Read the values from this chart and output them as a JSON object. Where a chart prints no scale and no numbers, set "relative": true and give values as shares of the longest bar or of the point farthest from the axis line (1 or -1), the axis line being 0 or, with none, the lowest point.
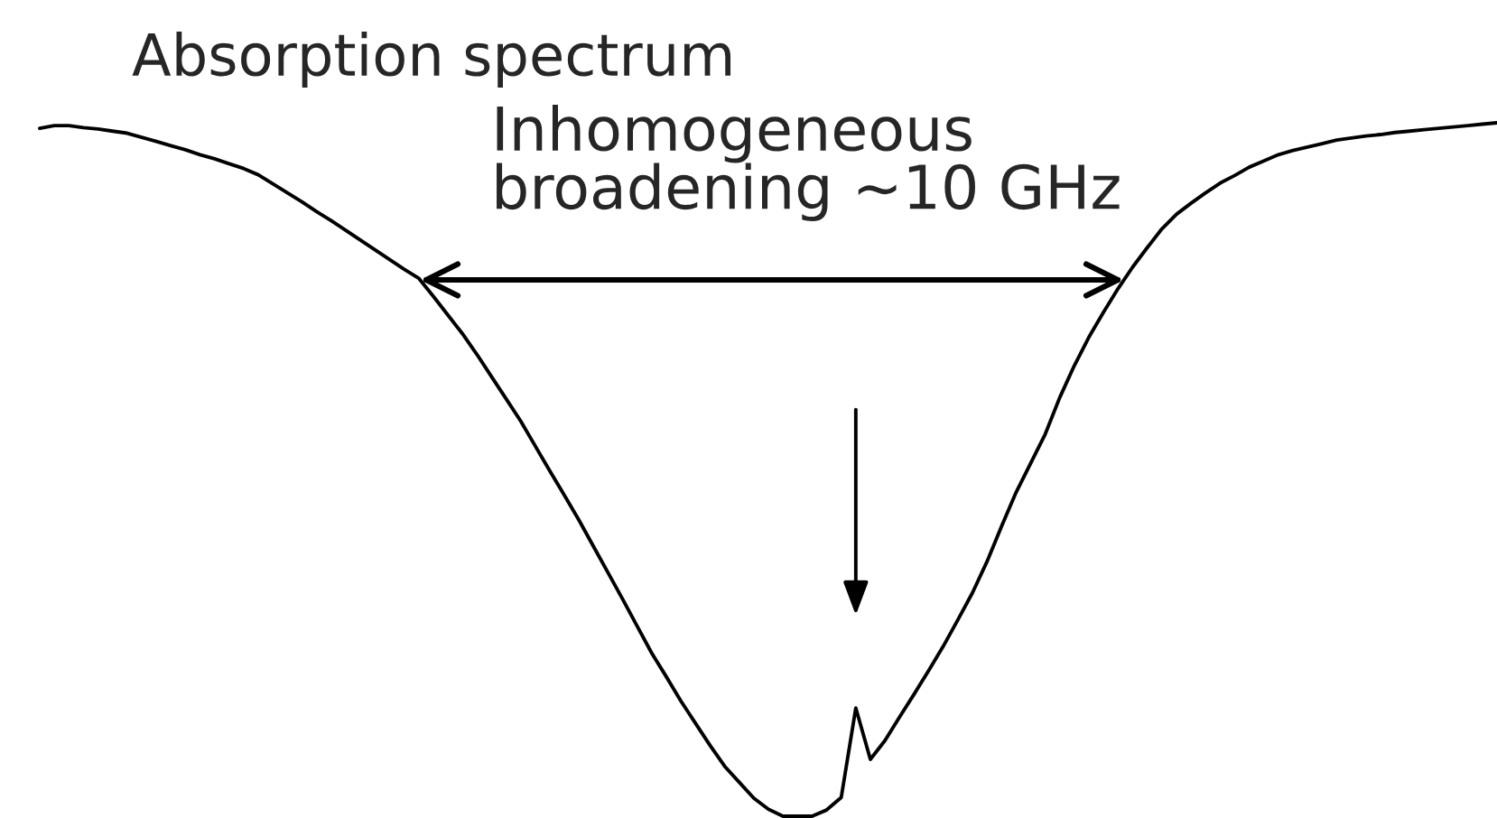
{
  "chart_data": {
    "type": "line",
    "title": "Absorption spectrum",
    "relative": true,
    "line_style": "solid",
    "categories": [
      null,
      null,
      null,
      null,
      null,
      null,
      null,
      null,
      null,
      null,
      null,
      null,
      null,
      null,
      null,
      null,
      null,
      null,
      null,
      null,
      null,
      null,
      null,
      null,
      null,
      null,
      null,
      null,
      null,
      null,
      null,
      null,
      null,
      null,
      null,
      null,
      null,
      null,
      null,
      null,
      null,
      null,
      null,
      null,
      null,
      null,
      null,
      null,
      null,
      null,
      null,
      null,
      null,
      null,
      null,
      null,
      null,
      null,
      null,
      null,
      null,
      null,
      null,
      null,
      null,
      null,
      null,
      null,
      null,
      null,
      null,
      null,
      null,
      null,
      null,
      null,
      null,
      null,
      null,
      null,
      null,
      null,
      null,
      null,
      null,
      null,
      null,
      null,
      null,
      null,
      null,
      null,
      null,
      null,
      null,
      null,
      null,
      null,
      null,
      null,
      null
    ],
    "series": [
      {
        "color": "#000000",
        "values": [
          0.992,
          0.996,
          0.996,
          0.993,
          0.991,
          0.988,
          0.985,
          0.979,
          0.973,
          0.967,
          0.961,
          0.954,
          0.948,
          0.941,
          0.934,
          0.925,
          0.912,
          0.899,
          0.886,
          0.872,
          0.859,
          0.845,
          0.831,
          0.817,
          0.803,
          0.789,
          0.776,
          0.75,
          0.723,
          0.696,
          0.666,
          0.634,
          0.602,
          0.57,
          0.534,
          0.498,
          0.463,
          0.427,
          0.389,
          0.351,
          0.313,
          0.274,
          0.235,
          0.201,
          0.166,
          0.134,
          0.102,
          0.072,
          0.049,
          0.026,
          0.01,
          0.0,
          0.0,
          0.0,
          0.009,
          0.027,
          0.156,
          0.082,
          0.109,
          0.143,
          0.176,
          0.21,
          0.245,
          0.283,
          0.322,
          0.367,
          0.418,
          0.467,
          0.509,
          0.551,
          0.604,
          0.65,
          0.691,
          0.727,
          0.761,
          0.792,
          0.82,
          0.847,
          0.868,
          0.884,
          0.899,
          0.913,
          0.924,
          0.936,
          0.945,
          0.954,
          0.96,
          0.965,
          0.97,
          0.975,
          0.978,
          0.981,
          0.983,
          0.986,
          0.988,
          0.99,
          0.992,
          0.994,
          0.996,
          0.998,
          1.0
        ]
      }
    ],
    "annotations": [
      "Inhomogeneous\nbroadening ~10 GHz"
    ]
  }
}
